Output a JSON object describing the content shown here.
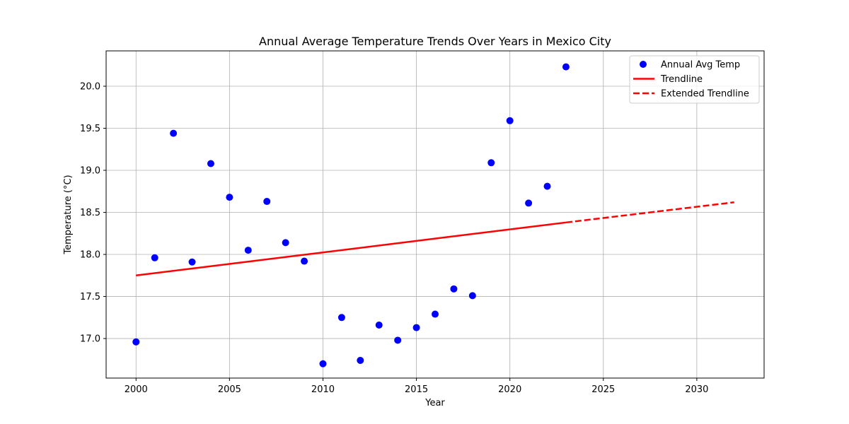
{
  "chart_data": {
    "type": "scatter",
    "title": "Annual Average Temperature Trends Over Years in Mexico City",
    "xlabel": "Year",
    "ylabel": "Temperature (°C)",
    "xlim": [
      1998.4,
      2033.6
    ],
    "ylim": [
      16.53,
      20.42
    ],
    "xticks": [
      2000,
      2005,
      2010,
      2015,
      2020,
      2025,
      2030
    ],
    "yticks": [
      17.0,
      17.5,
      18.0,
      18.5,
      19.0,
      19.5,
      20.0
    ],
    "grid": true,
    "legend_position": "top-right",
    "series": [
      {
        "name": "Annual Avg Temp",
        "kind": "scatter",
        "color": "#0000ff",
        "x": [
          2000,
          2001,
          2002,
          2003,
          2004,
          2005,
          2006,
          2007,
          2008,
          2009,
          2010,
          2011,
          2012,
          2013,
          2014,
          2015,
          2016,
          2017,
          2018,
          2019,
          2020,
          2021,
          2022,
          2023
        ],
        "y": [
          16.96,
          17.96,
          19.44,
          17.91,
          19.08,
          18.68,
          18.05,
          18.63,
          18.14,
          17.92,
          16.7,
          17.25,
          16.74,
          17.16,
          16.98,
          17.13,
          17.29,
          17.59,
          17.51,
          19.09,
          19.59,
          18.61,
          18.81,
          20.23
        ]
      },
      {
        "name": "Trendline",
        "kind": "line",
        "style": "solid",
        "color": "#ff0000",
        "x": [
          2000,
          2023
        ],
        "y": [
          17.75,
          18.38
        ]
      },
      {
        "name": "Extended Trendline",
        "kind": "line",
        "style": "dashed",
        "color": "#ff0000",
        "x": [
          2023,
          2032
        ],
        "y": [
          18.38,
          18.62
        ]
      }
    ]
  }
}
